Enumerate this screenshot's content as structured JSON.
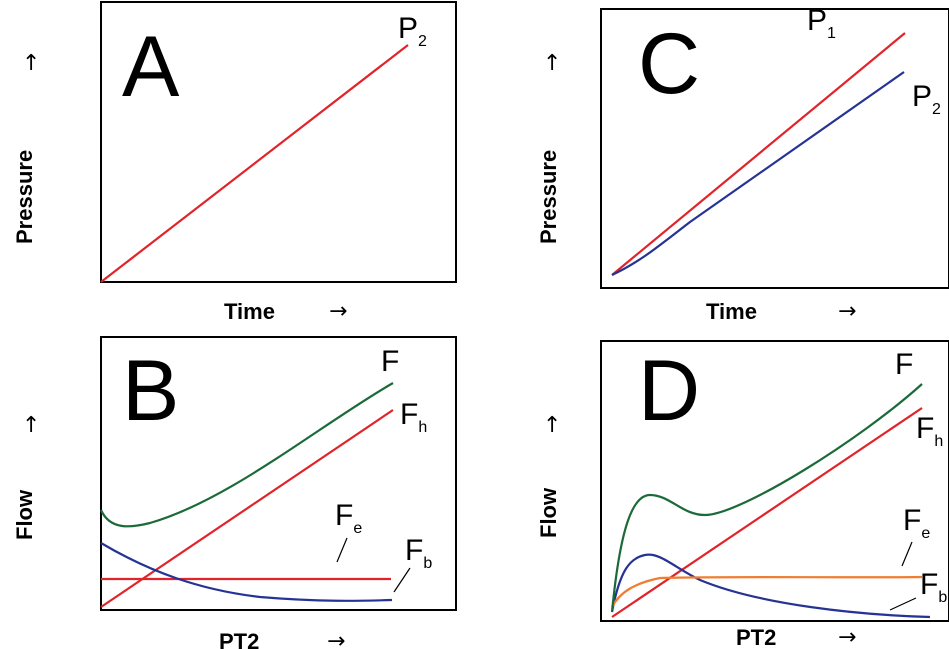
{
  "colors": {
    "red": "#e0242a",
    "blue": "#253494",
    "green": "#1b6b3a",
    "orange": "#ef7d32"
  },
  "panels": {
    "a": {
      "letter": "A",
      "xlabel": "Time",
      "ylabel": "Pressure",
      "curves": [
        {
          "name": "P",
          "sub": "2",
          "color": "red"
        }
      ]
    },
    "b": {
      "letter": "B",
      "xlabel": "PT2",
      "ylabel": "Flow",
      "curves": [
        {
          "name": "F",
          "sub": "",
          "color": "green"
        },
        {
          "name": "F",
          "sub": "h",
          "color": "red"
        },
        {
          "name": "F",
          "sub": "e",
          "color": "red"
        },
        {
          "name": "F",
          "sub": "b",
          "color": "blue"
        }
      ]
    },
    "c": {
      "letter": "C",
      "xlabel": "Time",
      "ylabel": "Pressure",
      "curves": [
        {
          "name": "P",
          "sub": "1",
          "color": "red"
        },
        {
          "name": "P",
          "sub": "2",
          "color": "blue"
        }
      ]
    },
    "d": {
      "letter": "D",
      "xlabel": "PT2",
      "ylabel": "Flow",
      "curves": [
        {
          "name": "F",
          "sub": "",
          "color": "green"
        },
        {
          "name": "F",
          "sub": "h",
          "color": "red"
        },
        {
          "name": "F",
          "sub": "e",
          "color": "orange"
        },
        {
          "name": "F",
          "sub": "b",
          "color": "blue"
        }
      ]
    }
  },
  "arrows": {
    "right": "→",
    "up": "↑"
  }
}
